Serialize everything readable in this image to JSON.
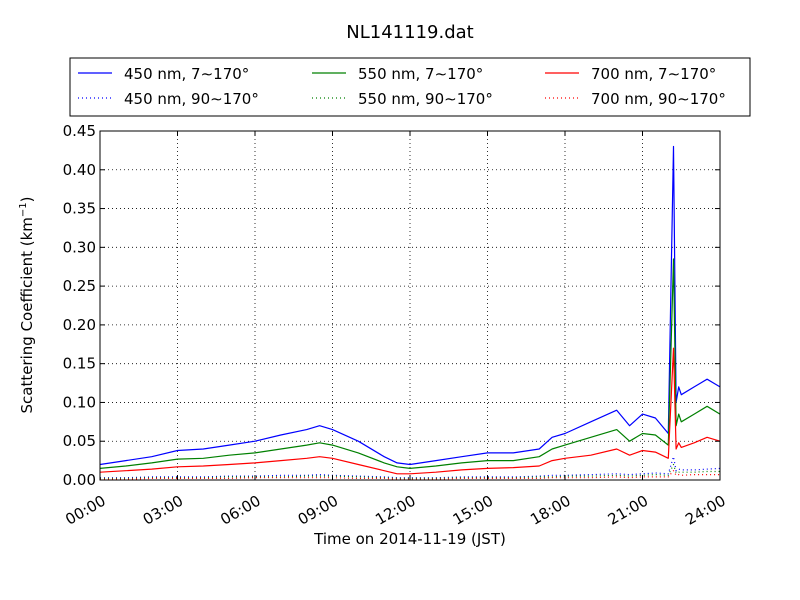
{
  "chart_data": {
    "type": "line",
    "title": "NL141119.dat",
    "xlabel": "Time on 2014-11-19 (JST)",
    "ylabel": "Scattering Coefficient (km",
    "ylabel_exp": "−1",
    "ylabel_close": ")",
    "grid": true,
    "legend_position": "top, above plot",
    "xlim": [
      0,
      24
    ],
    "ylim": [
      0,
      0.45
    ],
    "x_ticks": [
      0,
      3,
      6,
      9,
      12,
      15,
      18,
      21,
      24
    ],
    "x_tick_labels": [
      "00:00",
      "03:00",
      "06:00",
      "09:00",
      "12:00",
      "15:00",
      "18:00",
      "21:00",
      "24:00"
    ],
    "y_ticks": [
      0,
      0.05,
      0.1,
      0.15,
      0.2,
      0.25,
      0.3,
      0.35,
      0.4,
      0.45
    ],
    "y_tick_labels": [
      "0.00",
      "0.05",
      "0.10",
      "0.15",
      "0.20",
      "0.25",
      "0.30",
      "0.35",
      "0.40",
      "0.45"
    ],
    "x": [
      0,
      1,
      2,
      3,
      4,
      5,
      6,
      7,
      8,
      8.5,
      9,
      10,
      11,
      11.5,
      12,
      13,
      14,
      15,
      16,
      17,
      17.5,
      18,
      19,
      20,
      20.5,
      21,
      21.5,
      22,
      22.2,
      22.3,
      22.4,
      22.5,
      23,
      23.5,
      24
    ],
    "series": [
      {
        "name": "450 nm, 7∼170°",
        "color": "#0000ff",
        "style": "solid",
        "values": [
          0.02,
          0.025,
          0.03,
          0.038,
          0.04,
          0.045,
          0.05,
          0.058,
          0.065,
          0.07,
          0.065,
          0.05,
          0.03,
          0.022,
          0.02,
          0.025,
          0.03,
          0.035,
          0.035,
          0.04,
          0.055,
          0.06,
          0.075,
          0.09,
          0.07,
          0.085,
          0.08,
          0.06,
          0.43,
          0.1,
          0.12,
          0.11,
          0.12,
          0.13,
          0.12
        ]
      },
      {
        "name": "450 nm, 90∼170°",
        "color": "#0000ff",
        "style": "dotted",
        "values": [
          0.003,
          0.003,
          0.004,
          0.004,
          0.004,
          0.005,
          0.005,
          0.006,
          0.006,
          0.007,
          0.006,
          0.005,
          0.004,
          0.003,
          0.003,
          0.003,
          0.004,
          0.004,
          0.004,
          0.005,
          0.006,
          0.006,
          0.007,
          0.008,
          0.007,
          0.008,
          0.009,
          0.008,
          0.03,
          0.012,
          0.014,
          0.013,
          0.013,
          0.014,
          0.015
        ]
      },
      {
        "name": "550 nm, 7∼170°",
        "color": "#008000",
        "style": "solid",
        "values": [
          0.015,
          0.018,
          0.022,
          0.027,
          0.028,
          0.032,
          0.035,
          0.04,
          0.045,
          0.048,
          0.045,
          0.035,
          0.022,
          0.017,
          0.015,
          0.018,
          0.022,
          0.025,
          0.025,
          0.03,
          0.04,
          0.045,
          0.055,
          0.065,
          0.05,
          0.06,
          0.058,
          0.045,
          0.285,
          0.07,
          0.085,
          0.075,
          0.085,
          0.095,
          0.085
        ]
      },
      {
        "name": "550 nm, 90∼170°",
        "color": "#008000",
        "style": "dotted",
        "values": [
          0.002,
          0.002,
          0.003,
          0.003,
          0.003,
          0.004,
          0.004,
          0.004,
          0.005,
          0.005,
          0.005,
          0.004,
          0.003,
          0.002,
          0.002,
          0.002,
          0.003,
          0.003,
          0.003,
          0.004,
          0.004,
          0.005,
          0.005,
          0.006,
          0.005,
          0.006,
          0.007,
          0.006,
          0.02,
          0.009,
          0.01,
          0.01,
          0.01,
          0.011,
          0.011
        ]
      },
      {
        "name": "700 nm, 7∼170°",
        "color": "#ff0000",
        "style": "solid",
        "values": [
          0.01,
          0.012,
          0.014,
          0.017,
          0.018,
          0.02,
          0.022,
          0.025,
          0.028,
          0.03,
          0.028,
          0.02,
          0.012,
          0.008,
          0.008,
          0.01,
          0.013,
          0.015,
          0.016,
          0.018,
          0.025,
          0.028,
          0.032,
          0.04,
          0.032,
          0.038,
          0.036,
          0.028,
          0.17,
          0.04,
          0.048,
          0.042,
          0.048,
          0.055,
          0.05
        ]
      },
      {
        "name": "700 nm, 90∼170°",
        "color": "#ff0000",
        "style": "dotted",
        "values": [
          0.001,
          0.001,
          0.002,
          0.002,
          0.002,
          0.002,
          0.003,
          0.003,
          0.003,
          0.003,
          0.003,
          0.002,
          0.002,
          0.001,
          0.001,
          0.001,
          0.002,
          0.002,
          0.002,
          0.002,
          0.003,
          0.003,
          0.003,
          0.004,
          0.003,
          0.004,
          0.004,
          0.004,
          0.012,
          0.006,
          0.007,
          0.006,
          0.007,
          0.007,
          0.007
        ]
      }
    ]
  }
}
